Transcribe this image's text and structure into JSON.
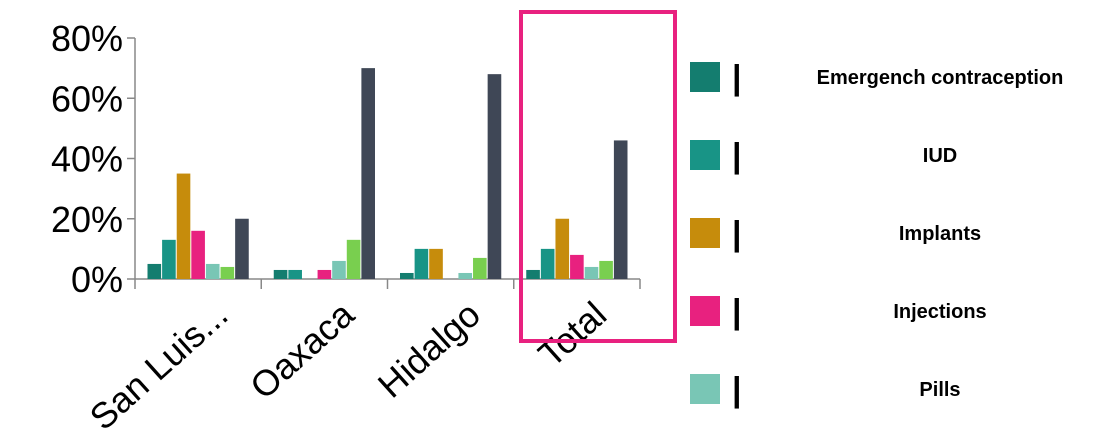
{
  "chart_data": {
    "type": "bar",
    "categories": [
      "San Luis...",
      "Oaxaca",
      "Hidalgo",
      "Total"
    ],
    "series": [
      {
        "name": "Emergench contraception",
        "color": "#147d6f",
        "values": [
          5,
          3,
          2,
          3
        ]
      },
      {
        "name": "IUD",
        "color": "#189486",
        "values": [
          13,
          3,
          10,
          10
        ]
      },
      {
        "name": "Implants",
        "color": "#c68c0c",
        "values": [
          35,
          0,
          10,
          20
        ]
      },
      {
        "name": "Injections",
        "color": "#e8217f",
        "values": [
          16,
          3,
          0,
          8
        ]
      },
      {
        "name": "Pills",
        "color": "#79c6b5",
        "values": [
          5,
          6,
          2,
          4
        ]
      },
      {
        "name": "",
        "color": "#79cf4f",
        "values": [
          4,
          13,
          7,
          6
        ]
      },
      {
        "name": "",
        "color": "#3f4756",
        "values": [
          20,
          70,
          68,
          46
        ]
      }
    ],
    "ylim": [
      0,
      80
    ],
    "yticks": [
      "0%",
      "20%",
      "40%",
      "60%",
      "80%"
    ],
    "ytick_values": [
      0,
      20,
      40,
      60,
      80
    ],
    "legend_marker": "|",
    "legend_position": "right",
    "highlight_category": "Total",
    "highlight_color": "#e8217f",
    "grid": false
  }
}
